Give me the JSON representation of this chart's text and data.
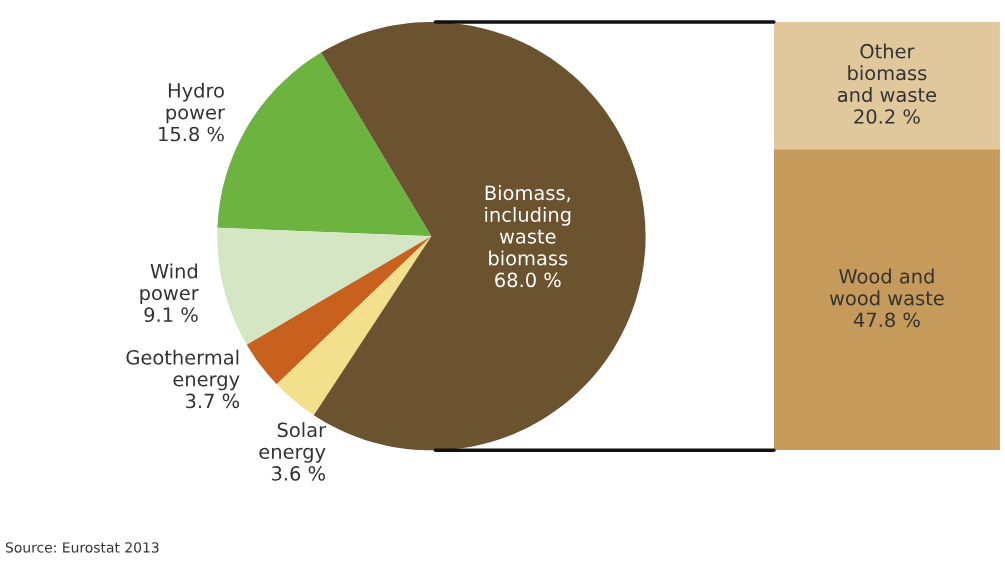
{
  "chart_data": [
    {
      "type": "pie",
      "categories": [
        "Hydro\npower",
        "Wind\npower",
        "Geothermal\nenergy",
        "Solar\nenergy",
        "Biomass,\nincluding\nwaste\nbiomass"
      ],
      "values": [
        15.8,
        9.1,
        3.7,
        3.6,
        68.0
      ],
      "colors": [
        "#6db33f",
        "#d4e6c3",
        "#c8601e",
        "#f3e08c",
        "#6b5330"
      ],
      "value_labels": [
        "15.8 %",
        "9.1 %",
        "3.7 %",
        "3.6 %",
        "68.0 %"
      ],
      "annotations": [
        "Source: Eurostat 2013"
      ]
    },
    {
      "type": "bar",
      "stacked": true,
      "categories": [
        null
      ],
      "series": [
        {
          "name": "Wood and\nwood waste",
          "color": "#c69a5a",
          "values": [
            47.8
          ],
          "value_labels": [
            "47.8 %"
          ]
        },
        {
          "name": "Other\nbiomass\nand waste",
          "color": "#e0c79c",
          "values": [
            20.2
          ],
          "value_labels": [
            "20.2 %"
          ]
        }
      ]
    }
  ]
}
